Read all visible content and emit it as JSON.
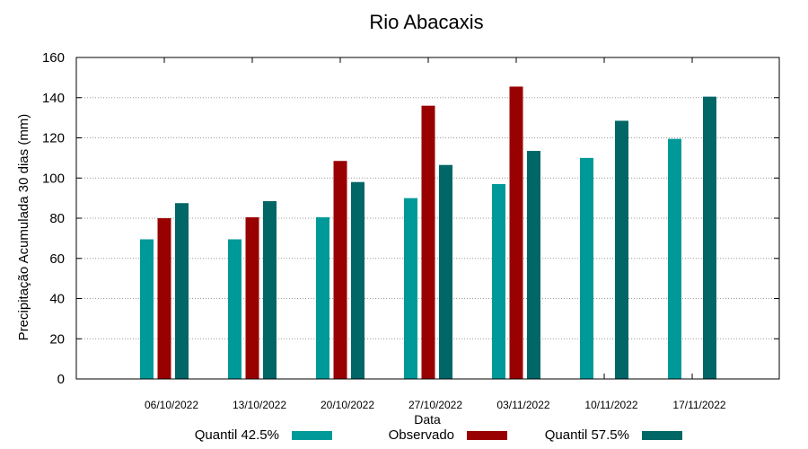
{
  "chart_data": {
    "type": "bar",
    "title": "Rio Abacaxis",
    "xlabel": "Data",
    "ylabel": "Precipitação Acumulada 30 dias (mm)",
    "ylim": [
      0,
      160
    ],
    "yticks": [
      "0",
      "20",
      "40",
      "60",
      "80",
      "100",
      "120",
      "140",
      "160"
    ],
    "categories": [
      "06/10/2022",
      "13/10/2022",
      "20/10/2022",
      "27/10/2022",
      "03/11/2022",
      "10/11/2022",
      "17/11/2022"
    ],
    "grid": true,
    "legend_position": "bottom",
    "series": [
      {
        "name": "Quantil 42.5%",
        "color": "#009999",
        "values": [
          69.5,
          69.5,
          80.5,
          90,
          97,
          110,
          119.5
        ]
      },
      {
        "name": "Observado",
        "color": "#990000",
        "values": [
          80,
          80.5,
          108.5,
          136,
          145.5,
          null,
          null
        ]
      },
      {
        "name": "Quantil 57.5%",
        "color": "#006666",
        "values": [
          87.5,
          88.5,
          98,
          106.5,
          113.5,
          128.5,
          140.5
        ]
      }
    ]
  }
}
